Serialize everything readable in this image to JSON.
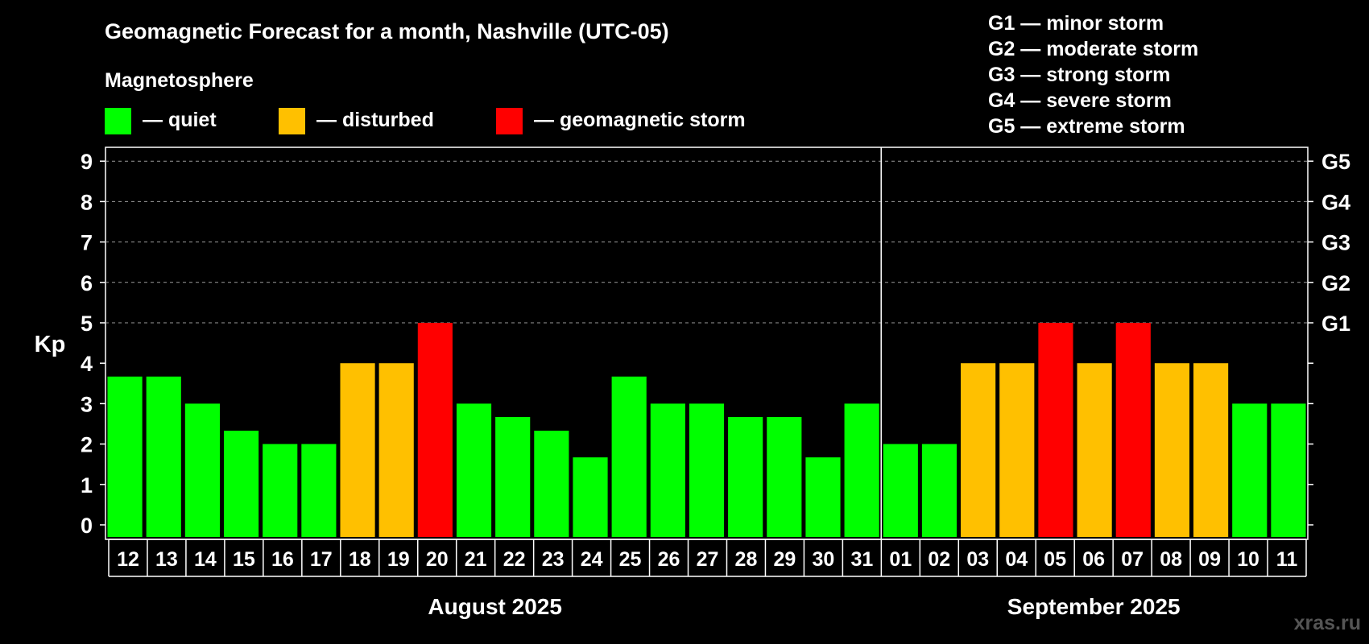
{
  "title": "Geomagnetic Forecast for a month, Nashville (UTC-05)",
  "legend_heading": "Magnetosphere",
  "legend": [
    {
      "label": "— quiet",
      "color": "#00ff00"
    },
    {
      "label": "— disturbed",
      "color": "#ffc000"
    },
    {
      "label": "— geomagnetic storm",
      "color": "#ff0000"
    }
  ],
  "storm_scale": [
    "G1 — minor storm",
    "G2 — moderate storm",
    "G3 — strong storm",
    "G4 — severe storm",
    "G5 — extreme storm"
  ],
  "watermark": "xras.ru",
  "chart_data": {
    "type": "bar",
    "ylabel": "Kp",
    "ylim": [
      0,
      9
    ],
    "yticks": [
      0,
      1,
      2,
      3,
      4,
      5,
      6,
      7,
      8,
      9
    ],
    "right_ticks": [
      {
        "value": 5,
        "label": "G1"
      },
      {
        "value": 6,
        "label": "G2"
      },
      {
        "value": 7,
        "label": "G3"
      },
      {
        "value": 8,
        "label": "G4"
      },
      {
        "value": 9,
        "label": "G5"
      }
    ],
    "gridlines": [
      5,
      6,
      7,
      8,
      9
    ],
    "categories": [
      "12",
      "13",
      "14",
      "15",
      "16",
      "17",
      "18",
      "19",
      "20",
      "21",
      "22",
      "23",
      "24",
      "25",
      "26",
      "27",
      "28",
      "29",
      "30",
      "31",
      "01",
      "02",
      "03",
      "04",
      "05",
      "06",
      "07",
      "08",
      "09",
      "10",
      "11"
    ],
    "values": [
      3.67,
      3.67,
      3,
      2.33,
      2,
      2,
      4,
      4,
      5,
      3,
      2.67,
      2.33,
      1.67,
      3.67,
      3,
      3,
      2.67,
      2.67,
      1.67,
      3,
      2,
      2,
      4,
      4,
      5,
      4,
      5,
      4,
      4,
      3,
      3
    ],
    "status": [
      "quiet",
      "quiet",
      "quiet",
      "quiet",
      "quiet",
      "quiet",
      "disturbed",
      "disturbed",
      "storm",
      "quiet",
      "quiet",
      "quiet",
      "quiet",
      "quiet",
      "quiet",
      "quiet",
      "quiet",
      "quiet",
      "quiet",
      "quiet",
      "quiet",
      "quiet",
      "disturbed",
      "disturbed",
      "storm",
      "disturbed",
      "storm",
      "disturbed",
      "disturbed",
      "quiet",
      "quiet"
    ],
    "colors": {
      "quiet": "#00ff00",
      "disturbed": "#ffc000",
      "storm": "#ff0000"
    },
    "months": [
      {
        "label": "August 2025",
        "count": 20
      },
      {
        "label": "September 2025",
        "count": 11
      }
    ]
  }
}
